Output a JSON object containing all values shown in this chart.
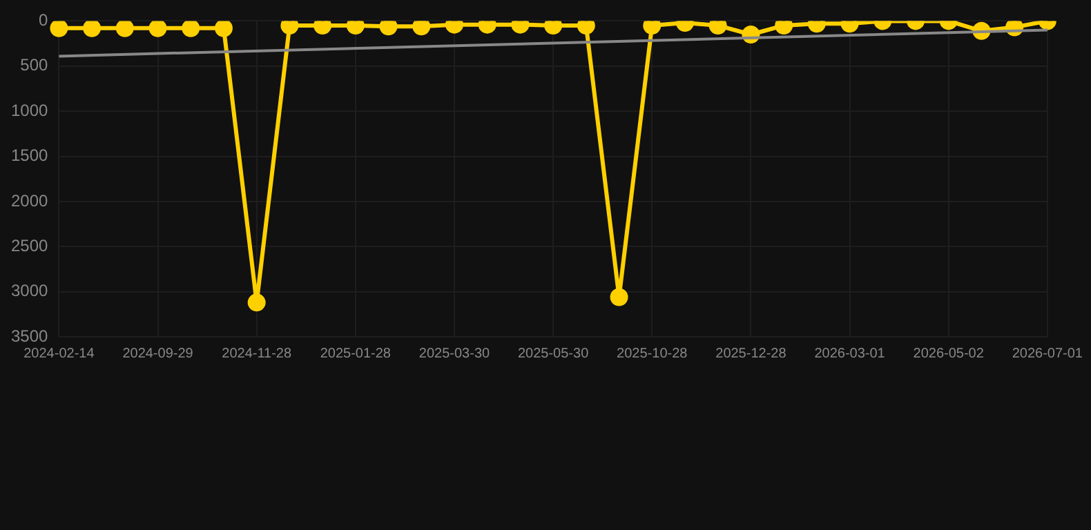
{
  "chart_data": {
    "type": "line",
    "categories": [
      "2024-02-14",
      null,
      null,
      "2024-09-29",
      null,
      null,
      "2024-11-28",
      null,
      null,
      "2025-01-28",
      null,
      null,
      "2025-03-30",
      null,
      null,
      "2025-05-30",
      null,
      null,
      "2025-10-28",
      null,
      null,
      "2025-12-28",
      null,
      null,
      "2026-03-01",
      null,
      null,
      "2026-05-02",
      null,
      null,
      "2026-07-01"
    ],
    "series": [
      {
        "color": "#ffd000",
        "values": [
          80,
          80,
          80,
          80,
          80,
          80,
          3120,
          50,
          50,
          50,
          60,
          60,
          40,
          40,
          40,
          50,
          50,
          3060,
          50,
          20,
          50,
          150,
          50,
          30,
          30,
          0,
          0,
          0,
          110,
          70,
          0
        ]
      },
      {
        "color": "#888888",
        "marker": "none",
        "values": [
          390,
          null,
          null,
          null,
          null,
          null,
          null,
          null,
          null,
          null,
          null,
          null,
          null,
          null,
          null,
          null,
          null,
          null,
          null,
          null,
          null,
          null,
          null,
          null,
          null,
          null,
          null,
          null,
          null,
          null,
          100
        ]
      }
    ],
    "ylim": [
      3500,
      0
    ],
    "yticks": [
      0,
      500,
      1000,
      1500,
      2000,
      2500,
      3000,
      3500
    ],
    "grid": true,
    "marker": "circle",
    "legend": false
  }
}
